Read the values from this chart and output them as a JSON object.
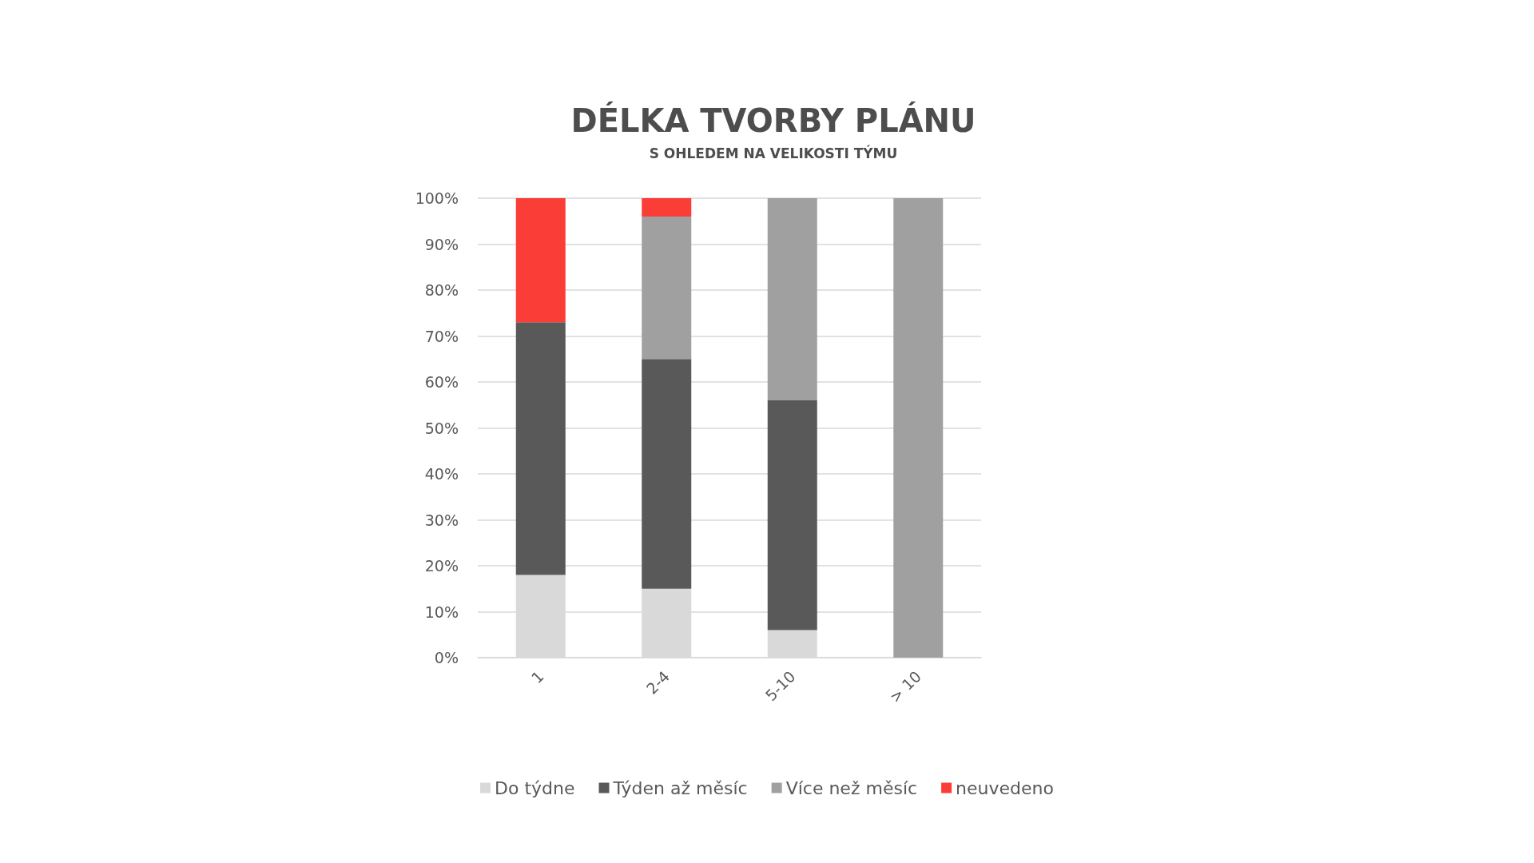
{
  "chart_data": {
    "type": "bar",
    "title": "DÉLKA TVORBY PLÁNU",
    "subtitle": "S OHLEDEM NA VELIKOSTI TÝMU",
    "categories": [
      "1",
      "2-4",
      "5-10",
      "> 10"
    ],
    "stacked": true,
    "series": [
      {
        "name": "Do týdne",
        "color": "#d9d9d9",
        "values": [
          18,
          15,
          6,
          0
        ]
      },
      {
        "name": "Týden až měsíc",
        "color": "#595959",
        "values": [
          55,
          50,
          50,
          0
        ]
      },
      {
        "name": "Více než měsíc",
        "color": "#a0a0a0",
        "values": [
          0,
          31,
          44,
          100
        ]
      },
      {
        "name": "neuvedeno",
        "color": "#fb3d38",
        "values": [
          27,
          4,
          0,
          0
        ]
      }
    ],
    "ylim": [
      0,
      100
    ],
    "yticks": [
      {
        "value": 0,
        "label": "0%"
      },
      {
        "value": 10,
        "label": "10%"
      },
      {
        "value": 20,
        "label": "20%"
      },
      {
        "value": 30,
        "label": "30%"
      },
      {
        "value": 40,
        "label": "40%"
      },
      {
        "value": 50,
        "label": "50%"
      },
      {
        "value": 60,
        "label": "60%"
      },
      {
        "value": 70,
        "label": "70%"
      },
      {
        "value": 80,
        "label": "80%"
      },
      {
        "value": 90,
        "label": "90%"
      },
      {
        "value": 100,
        "label": "100%"
      }
    ],
    "grid": "y",
    "legend": "bottom"
  }
}
